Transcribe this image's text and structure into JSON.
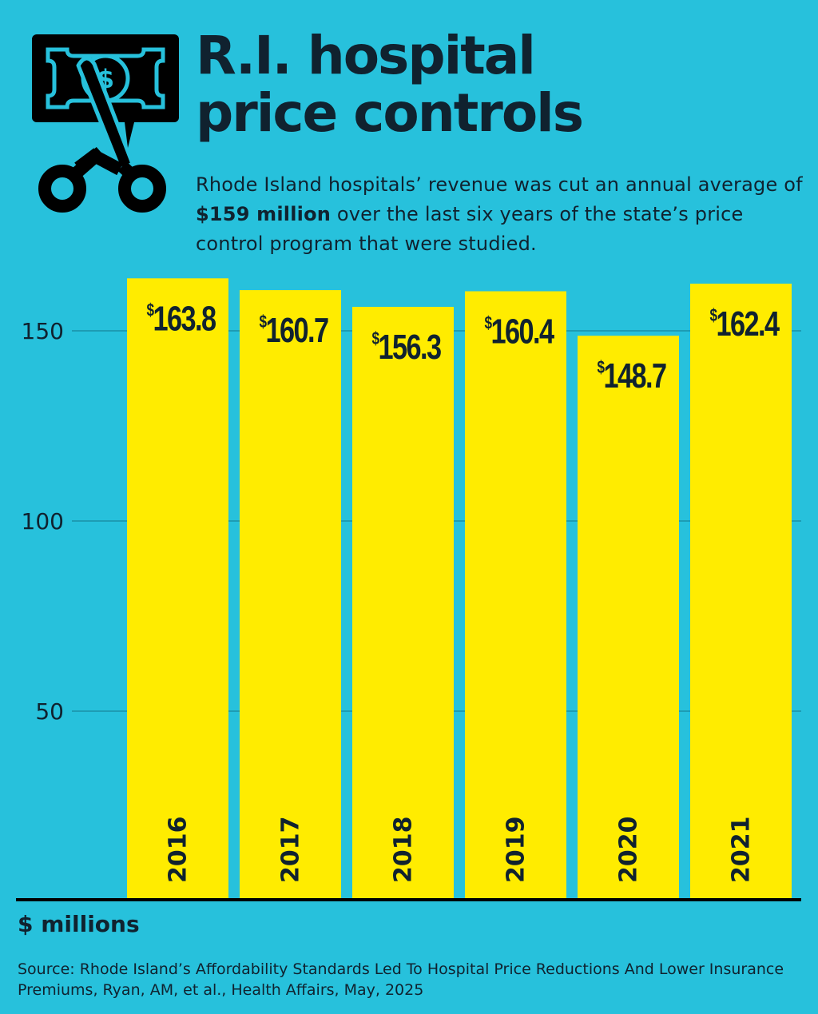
{
  "header": {
    "title_line1": "R.I. hospital",
    "title_line2": "price controls",
    "subtitle_pre": "Rhode Island hospitals’ revenue was cut an annual average of ",
    "subtitle_bold": "$159 million",
    "subtitle_post": " over the last six years of the state’s price control program that were studied.",
    "icon": "scissors-cutting-dollar-bill-icon"
  },
  "colors": {
    "background": "#27c1dc",
    "bar": "#ffec00",
    "text": "#10222f",
    "gridline": "#1a8fa6",
    "baseline": "#000000"
  },
  "footer": {
    "unit_label": "$ millions",
    "source": "Source: Rhode Island’s Affordability Standards Led To Hospital Price Reductions And Lower Insurance Premiums, Ryan, AM, et al., Health Affairs, May, 2025"
  },
  "chart_data": {
    "type": "bar",
    "title": "R.I. hospital price controls",
    "subtitle": "Rhode Island hospitals’ revenue was cut an annual average of $159 million over the last six years of the state’s price control program that were studied.",
    "categories": [
      "2016",
      "2017",
      "2018",
      "2019",
      "2020",
      "2021"
    ],
    "values": [
      163.8,
      160.7,
      156.3,
      160.4,
      148.7,
      162.4
    ],
    "value_labels": [
      "163.8",
      "160.7",
      "156.3",
      "160.4",
      "148.7",
      "162.4"
    ],
    "value_prefix": "$",
    "xlabel": "",
    "ylabel": "$ millions",
    "ylim": [
      0,
      170
    ],
    "yticks": [
      50,
      100,
      150
    ],
    "grid": true,
    "legend": "none",
    "category_label_orientation": "vertical-inside-bar-bottom"
  }
}
